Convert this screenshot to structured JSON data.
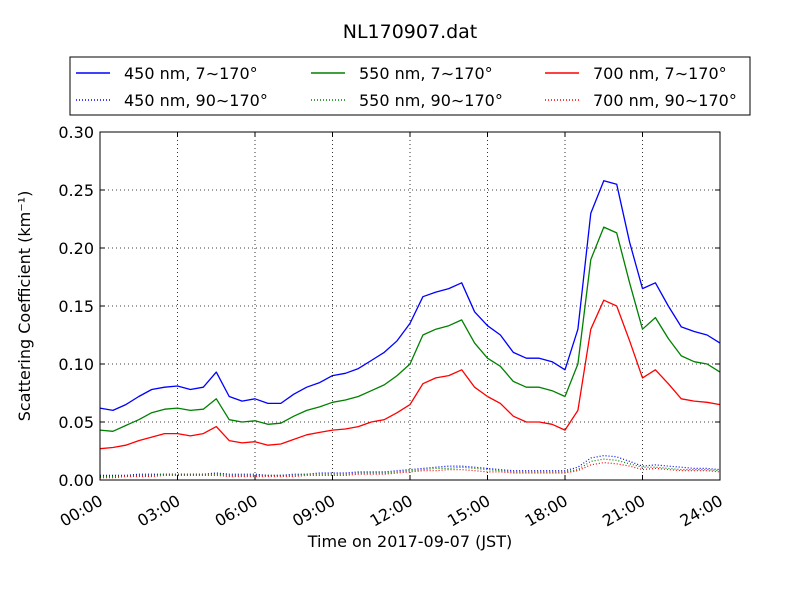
{
  "chart_data": {
    "type": "line",
    "title": "NL170907.dat",
    "xlabel": "Time on 2017-09-07 (JST)",
    "ylabel": "Scattering Coefficient (km⁻¹)",
    "xlim": [
      "00:00",
      "24:00"
    ],
    "ylim": [
      0,
      0.3
    ],
    "x_ticks": [
      "00:00",
      "03:00",
      "06:00",
      "09:00",
      "12:00",
      "15:00",
      "18:00",
      "21:00",
      "24:00"
    ],
    "y_ticks": [
      "0.00",
      "0.05",
      "0.10",
      "0.15",
      "0.20",
      "0.25",
      "0.30"
    ],
    "grid": true,
    "legend_position": "top",
    "x": [
      "00:00",
      "00:30",
      "01:00",
      "01:30",
      "02:00",
      "02:30",
      "03:00",
      "03:30",
      "04:00",
      "04:30",
      "05:00",
      "05:30",
      "06:00",
      "06:30",
      "07:00",
      "07:30",
      "08:00",
      "08:30",
      "09:00",
      "09:30",
      "10:00",
      "10:30",
      "11:00",
      "11:30",
      "12:00",
      "12:30",
      "13:00",
      "13:30",
      "14:00",
      "14:30",
      "15:00",
      "15:30",
      "16:00",
      "16:30",
      "17:00",
      "17:30",
      "18:00",
      "18:30",
      "19:00",
      "19:30",
      "20:00",
      "20:30",
      "21:00",
      "21:30",
      "22:00",
      "22:30",
      "23:00",
      "23:30",
      "24:00"
    ],
    "series": [
      {
        "name": "450 nm, 7∼170°",
        "color": "#0000ff",
        "style": "solid",
        "values": [
          0.062,
          0.06,
          0.065,
          0.072,
          0.078,
          0.08,
          0.081,
          0.078,
          0.08,
          0.093,
          0.072,
          0.068,
          0.07,
          0.066,
          0.066,
          0.074,
          0.08,
          0.084,
          0.09,
          0.092,
          0.096,
          0.103,
          0.11,
          0.12,
          0.135,
          0.158,
          0.162,
          0.165,
          0.17,
          0.145,
          0.133,
          0.125,
          0.11,
          0.105,
          0.105,
          0.102,
          0.095,
          0.13,
          0.23,
          0.258,
          0.255,
          0.205,
          0.165,
          0.17,
          0.15,
          0.132,
          0.128,
          0.125,
          0.118
        ]
      },
      {
        "name": "450 nm, 90∼170°",
        "color": "#0000ff",
        "style": "dotted",
        "values": [
          0.004,
          0.004,
          0.004,
          0.005,
          0.005,
          0.005,
          0.005,
          0.005,
          0.005,
          0.006,
          0.005,
          0.005,
          0.005,
          0.004,
          0.004,
          0.005,
          0.005,
          0.006,
          0.006,
          0.006,
          0.007,
          0.007,
          0.007,
          0.008,
          0.009,
          0.01,
          0.011,
          0.012,
          0.012,
          0.011,
          0.01,
          0.009,
          0.008,
          0.008,
          0.008,
          0.008,
          0.008,
          0.011,
          0.019,
          0.021,
          0.02,
          0.016,
          0.012,
          0.013,
          0.012,
          0.011,
          0.01,
          0.01,
          0.009
        ]
      },
      {
        "name": "550 nm, 7∼170°",
        "color": "#008000",
        "style": "solid",
        "values": [
          0.043,
          0.042,
          0.047,
          0.052,
          0.058,
          0.061,
          0.062,
          0.06,
          0.061,
          0.07,
          0.052,
          0.05,
          0.051,
          0.048,
          0.049,
          0.055,
          0.06,
          0.063,
          0.067,
          0.069,
          0.072,
          0.077,
          0.082,
          0.09,
          0.1,
          0.125,
          0.13,
          0.133,
          0.138,
          0.118,
          0.105,
          0.098,
          0.085,
          0.08,
          0.08,
          0.077,
          0.072,
          0.1,
          0.19,
          0.218,
          0.213,
          0.17,
          0.13,
          0.14,
          0.122,
          0.107,
          0.102,
          0.1,
          0.093
        ]
      },
      {
        "name": "550 nm, 90∼170°",
        "color": "#008000",
        "style": "dotted",
        "values": [
          0.003,
          0.003,
          0.004,
          0.004,
          0.004,
          0.005,
          0.005,
          0.005,
          0.005,
          0.005,
          0.004,
          0.004,
          0.004,
          0.004,
          0.004,
          0.004,
          0.005,
          0.005,
          0.005,
          0.005,
          0.006,
          0.006,
          0.006,
          0.007,
          0.008,
          0.009,
          0.01,
          0.01,
          0.011,
          0.01,
          0.009,
          0.008,
          0.007,
          0.007,
          0.007,
          0.007,
          0.007,
          0.009,
          0.016,
          0.018,
          0.017,
          0.014,
          0.011,
          0.011,
          0.01,
          0.009,
          0.009,
          0.009,
          0.008
        ]
      },
      {
        "name": "700 nm, 7∼170°",
        "color": "#ff0000",
        "style": "solid",
        "values": [
          0.027,
          0.028,
          0.03,
          0.034,
          0.037,
          0.04,
          0.04,
          0.038,
          0.04,
          0.046,
          0.034,
          0.032,
          0.033,
          0.03,
          0.031,
          0.035,
          0.039,
          0.041,
          0.043,
          0.044,
          0.046,
          0.05,
          0.052,
          0.058,
          0.065,
          0.083,
          0.088,
          0.09,
          0.095,
          0.08,
          0.072,
          0.066,
          0.055,
          0.05,
          0.05,
          0.048,
          0.043,
          0.06,
          0.13,
          0.155,
          0.15,
          0.12,
          0.088,
          0.095,
          0.083,
          0.07,
          0.068,
          0.067,
          0.065
        ]
      },
      {
        "name": "700 nm, 90∼170°",
        "color": "#ff0000",
        "style": "dotted",
        "values": [
          0.002,
          0.002,
          0.003,
          0.003,
          0.003,
          0.004,
          0.004,
          0.004,
          0.004,
          0.004,
          0.003,
          0.003,
          0.003,
          0.003,
          0.003,
          0.003,
          0.004,
          0.004,
          0.004,
          0.004,
          0.005,
          0.005,
          0.005,
          0.006,
          0.007,
          0.008,
          0.008,
          0.009,
          0.009,
          0.008,
          0.007,
          0.007,
          0.006,
          0.006,
          0.006,
          0.006,
          0.006,
          0.008,
          0.013,
          0.015,
          0.014,
          0.012,
          0.009,
          0.01,
          0.009,
          0.008,
          0.008,
          0.008,
          0.007
        ]
      }
    ]
  }
}
